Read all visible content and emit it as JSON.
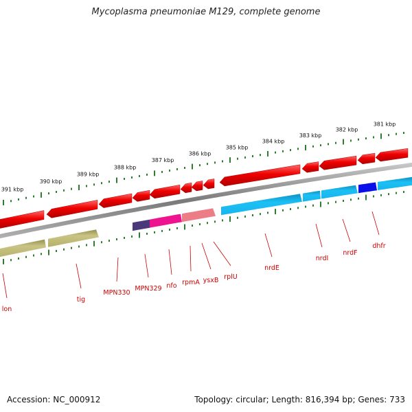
{
  "title": "Mycoplasma pneumoniae M129, complete genome",
  "footer": {
    "accession": "Accession: NC_000912",
    "summary": "Topology: circular; Length: 816,394 bp; Genes: 733"
  },
  "kbp_ticks": [
    "391 kbp",
    "390 kbp",
    "389 kbp",
    "388 kbp",
    "387 kbp",
    "386 kbp",
    "385 kbp",
    "384 kbp",
    "383 kbp",
    "382 kbp",
    "381 kbp"
  ],
  "gene_labels": [
    "lon",
    "tig",
    "MPN330",
    "MPN329",
    "nfo",
    "rpmA",
    "ysxB",
    "rplU",
    "nrdE",
    "nrdI",
    "nrdF",
    "dhfr"
  ],
  "colors": {
    "backbone": "#8a8a8a",
    "gene_arrow": "#ee0000",
    "tick": "#2e7d2e",
    "label": "#cc0000",
    "olive": "#b5b06a",
    "cyan": "#18b4ee",
    "navy": "#0a10e8",
    "purple": "#4a3a7a",
    "magenta": "#ee1490",
    "pink": "#ec7c86"
  }
}
